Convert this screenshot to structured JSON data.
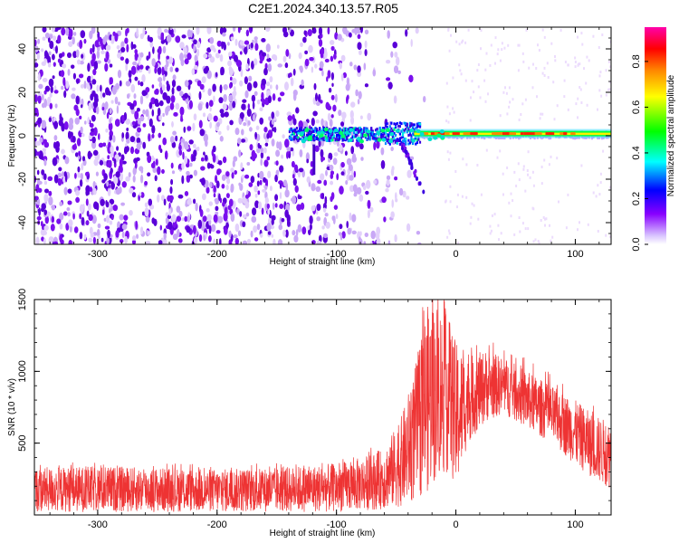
{
  "title": "C2E1.2024.340.13.57.R05",
  "chart_data": [
    {
      "type": "heatmap",
      "title": "C2E1.2024.340.13.57.R05",
      "xlabel": "Height of straight line (km)",
      "ylabel": "Frequency (Hz)",
      "xlim": [
        -353,
        130
      ],
      "ylim": [
        -50,
        50
      ],
      "xticks": [
        -300,
        -200,
        -100,
        0,
        100
      ],
      "yticks": [
        -40,
        -20,
        0,
        20,
        40
      ],
      "colorbar": {
        "label": "Normalized spectral amplitude",
        "range": [
          0.0,
          0.95
        ],
        "ticks": [
          0.0,
          0.2,
          0.4,
          0.6,
          0.8
        ],
        "colormap": [
          "#ffffff",
          "#8800ff",
          "#0000ff",
          "#00ffff",
          "#00ff00",
          "#ffff00",
          "#ff8800",
          "#ff0000",
          "#ff00aa"
        ]
      },
      "features": {
        "noise_region_x": [
          -353,
          -40
        ],
        "signal_band_x": [
          -140,
          130
        ],
        "signal_band_freq": [
          -2,
          4
        ],
        "peak_band_x": [
          -30,
          100
        ],
        "drift_branch": [
          [
            -45,
            -10
          ],
          [
            -35,
            -20
          ],
          [
            -28,
            -25
          ]
        ]
      }
    },
    {
      "type": "line",
      "xlabel": "Height of straight line (km)",
      "ylabel": "SNR (10 * v/v)",
      "xlim": [
        -353,
        130
      ],
      "ylim": [
        0,
        1500
      ],
      "xticks": [
        -300,
        -200,
        -100,
        0,
        100
      ],
      "yticks": [
        500,
        1000,
        1500
      ],
      "color": "#ee3333",
      "envelope": {
        "x": [
          -353,
          -300,
          -250,
          -200,
          -150,
          -100,
          -80,
          -60,
          -45,
          -35,
          -25,
          -15,
          -5,
          0,
          10,
          25,
          40,
          60,
          80,
          100,
          115,
          130
        ],
        "low": [
          20,
          20,
          20,
          20,
          20,
          20,
          30,
          40,
          60,
          90,
          150,
          250,
          300,
          150,
          500,
          650,
          700,
          600,
          500,
          350,
          250,
          180
        ],
        "high": [
          330,
          340,
          330,
          320,
          330,
          360,
          400,
          460,
          700,
          1000,
          1450,
          1500,
          1350,
          1200,
          1100,
          1150,
          1100,
          1000,
          900,
          800,
          700,
          650
        ]
      }
    }
  ]
}
